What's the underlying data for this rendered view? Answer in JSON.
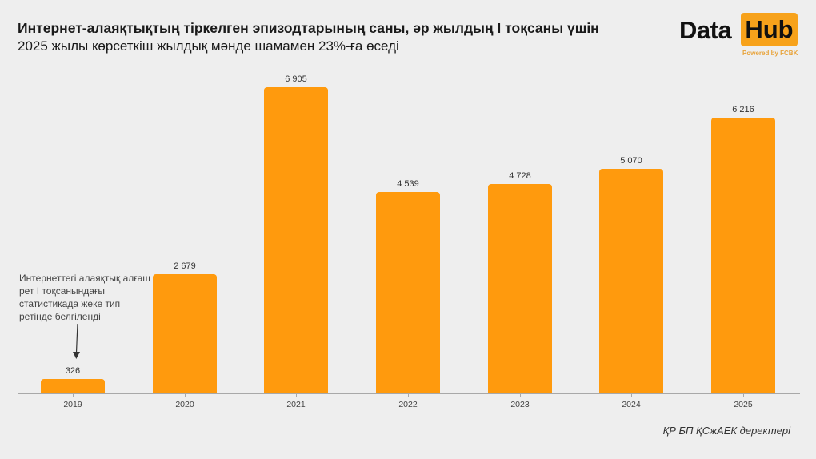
{
  "header": {
    "title": "Интернет-алаяқтықтың тіркелген эпизодтарының саны, әр жылдың I тоқсаны үшін",
    "subtitle": "2025 жылы көрсеткіш жылдық мәнде шамамен 23%-ға өседі"
  },
  "logo": {
    "part1": "Data",
    "part2": "Hub",
    "tagline": "Powered by FCBK",
    "accent_color": "#f7a21b"
  },
  "annotation": {
    "text": "Интернеттегі алаяқтық алғаш рет I тоқсанындағы статистикада жеке тип ретінде белгіленді"
  },
  "source": "ҚР БП ҚСжАЕК деректері",
  "bars": [
    {
      "year": "2019",
      "label": "326"
    },
    {
      "year": "2020",
      "label": "2 679"
    },
    {
      "year": "2021",
      "label": "6 905"
    },
    {
      "year": "2022",
      "label": "4 539"
    },
    {
      "year": "2023",
      "label": "4 728"
    },
    {
      "year": "2024",
      "label": "5 070"
    },
    {
      "year": "2025",
      "label": "6 216"
    }
  ],
  "chart_data": {
    "type": "bar",
    "title": "Интернет-алаяқтықтың тіркелген эпизодтарының саны, әр жылдың I тоқсаны үшін",
    "subtitle": "2025 жылы көрсеткіш жылдық мәнде шамамен 23%-ға өседі",
    "categories": [
      "2019",
      "2020",
      "2021",
      "2022",
      "2023",
      "2024",
      "2025"
    ],
    "values": [
      326,
      2679,
      6905,
      4539,
      4728,
      5070,
      6216
    ],
    "xlabel": "",
    "ylabel": "",
    "ylim": [
      0,
      6905
    ],
    "grid": false,
    "legend": "none",
    "bar_color": "#ff9a0d",
    "annotations": [
      {
        "target": "2019",
        "text": "Интернеттегі алаяқтық алғаш рет I тоқсанындағы статистикада жеке тип ретінде белгіленді"
      }
    ],
    "source": "ҚР БП ҚСжАЕК деректері"
  }
}
